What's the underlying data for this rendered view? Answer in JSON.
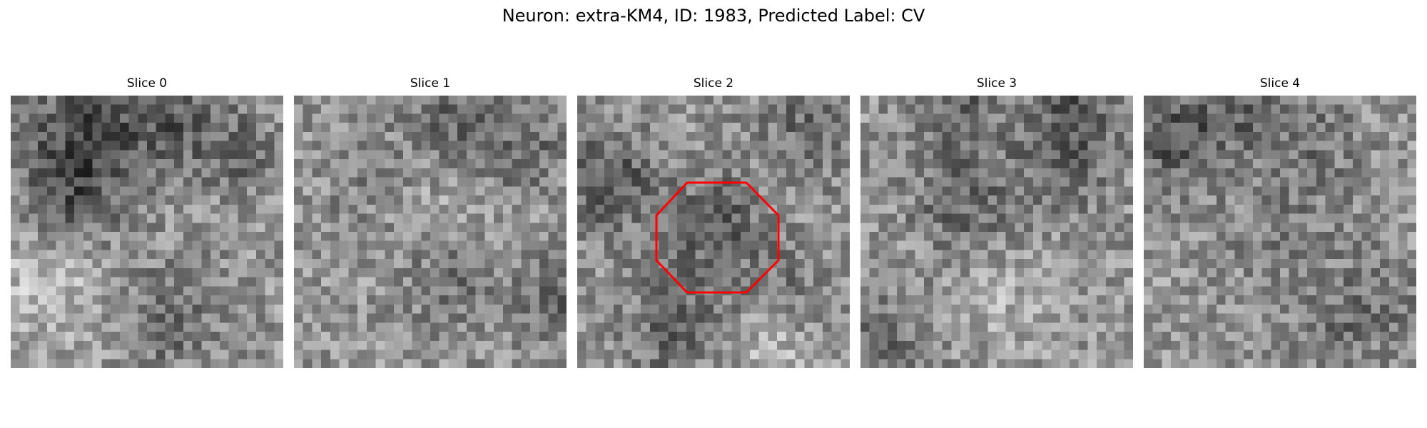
{
  "figure": {
    "title": "Neuron: extra-KM4, ID: 1983, Predicted Label: CV"
  },
  "panels": [
    {
      "title": "Slice 0",
      "has_roi": false
    },
    {
      "title": "Slice 1",
      "has_roi": false
    },
    {
      "title": "Slice 2",
      "has_roi": true
    },
    {
      "title": "Slice 3",
      "has_roi": false
    },
    {
      "title": "Slice 4",
      "has_roi": false
    }
  ],
  "roi": {
    "shape": "octagon",
    "color": "#ff0000"
  },
  "colormap": "gray"
}
